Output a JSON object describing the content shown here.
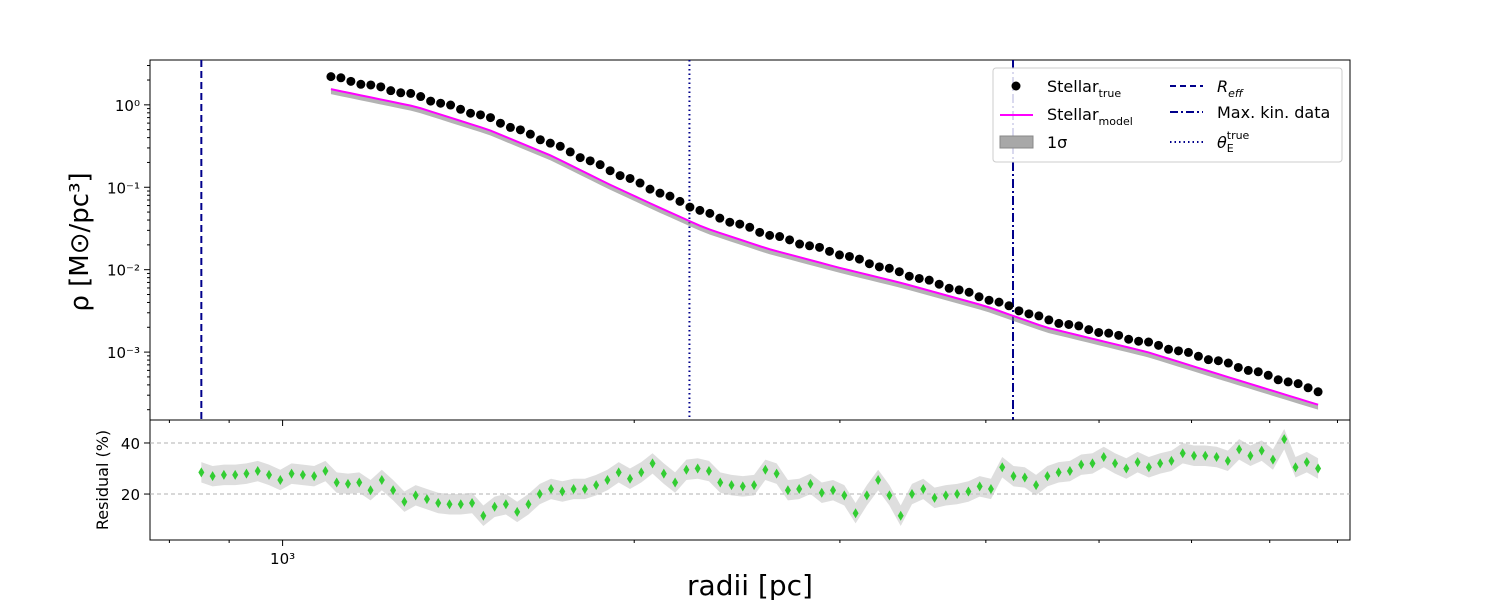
{
  "chart_data": [
    {
      "type": "scatter",
      "xlabel": "radii [pc]",
      "ylabel": "ρ [M⊙/pc³]",
      "x_scale": "log",
      "y_scale": "log",
      "xlim": [
        770,
        8200
      ],
      "ylim": [
        0.00015,
        3.5
      ],
      "x_ticks": [
        {
          "value": 1000,
          "label": "10³"
        }
      ],
      "y_ticks": [
        {
          "value": 1,
          "label": "10⁰"
        },
        {
          "value": 0.1,
          "label": "10⁻¹"
        },
        {
          "value": 0.01,
          "label": "10⁻²"
        },
        {
          "value": 0.001,
          "label": "10⁻³"
        }
      ],
      "legend_position": "top-right",
      "legend": [
        {
          "key": "stellar_true",
          "label": "Stellar",
          "sub": "true"
        },
        {
          "key": "stellar_model",
          "label": "Stellar",
          "sub": "model"
        },
        {
          "key": "band",
          "label": "1σ"
        },
        {
          "key": "reff",
          "label": "R",
          "sub": "eff"
        },
        {
          "key": "maxkin",
          "label": "Max. kin. data"
        },
        {
          "key": "theta",
          "label": "θ",
          "sub": "E",
          "sup": "true"
        }
      ],
      "vlines": [
        {
          "key": "reff",
          "x": 852,
          "style": "dashed",
          "color": "#00008b"
        },
        {
          "key": "theta",
          "x": 2230,
          "style": "dotted",
          "color": "#00008b"
        },
        {
          "key": "maxkin",
          "x": 4220,
          "style": "dashdot",
          "color": "#00008b"
        }
      ],
      "series": [
        {
          "key": "stellar_true",
          "name": "Stellar_true",
          "color": "#000000",
          "marker": "circle",
          "x_range": [
            1100,
            7700
          ],
          "n": 100,
          "profile": [
            [
              1100,
              2.2
            ],
            [
              1300,
              1.3
            ],
            [
              1500,
              0.7
            ],
            [
              1700,
              0.34
            ],
            [
              1900,
              0.165
            ],
            [
              2100,
              0.087
            ],
            [
              2300,
              0.049
            ],
            [
              2600,
              0.027
            ],
            [
              3000,
              0.0155
            ],
            [
              3400,
              0.009
            ],
            [
              4000,
              0.0045
            ],
            [
              4500,
              0.0025
            ],
            [
              5500,
              0.0013
            ],
            [
              6500,
              0.0007
            ],
            [
              7700,
              0.00034
            ]
          ]
        },
        {
          "key": "stellar_model",
          "name": "Stellar_model",
          "color": "#ff00ff",
          "style": "line",
          "profile": [
            [
              1100,
              1.55
            ],
            [
              1300,
              0.95
            ],
            [
              1500,
              0.5
            ],
            [
              1700,
              0.24
            ],
            [
              1900,
              0.11
            ],
            [
              2100,
              0.057
            ],
            [
              2300,
              0.032
            ],
            [
              2600,
              0.018
            ],
            [
              3000,
              0.0105
            ],
            [
              3400,
              0.0068
            ],
            [
              4000,
              0.0036
            ],
            [
              4500,
              0.002
            ],
            [
              5500,
              0.001
            ],
            [
              6500,
              0.00048
            ],
            [
              7700,
              0.00023
            ]
          ]
        }
      ],
      "band": {
        "color": "#808080",
        "opacity": 0.6,
        "lower_factor": 0.87,
        "upper_factor": 1.02
      }
    },
    {
      "type": "scatter",
      "ylabel": "Residual (%)",
      "x_scale": "log",
      "ylim": [
        2,
        49
      ],
      "y_ticks": [
        20,
        40
      ],
      "hlines": [
        20,
        40
      ],
      "color": "#32cd32",
      "band_color": "#c8c8c8",
      "x_range": [
        852,
        7700
      ],
      "values": [
        28.5,
        27,
        27.5,
        27.5,
        28,
        29,
        27.5,
        25.5,
        28,
        27.5,
        27,
        29,
        24.5,
        24,
        24.5,
        21.5,
        25.5,
        21.5,
        17,
        19.5,
        18,
        16.5,
        16,
        16,
        16.5,
        11.5,
        15,
        16,
        13,
        16,
        20,
        22,
        21,
        22,
        22,
        23.5,
        25.5,
        28.5,
        26,
        28.5,
        32,
        28,
        24.5,
        29.5,
        30,
        29,
        24.5,
        23.5,
        23,
        23.5,
        29.5,
        28,
        21.5,
        22,
        24,
        20.5,
        21.5,
        19.5,
        12.5,
        19.5,
        25.5,
        19.5,
        11.5,
        20,
        22,
        18.5,
        19.5,
        20,
        21,
        23,
        22,
        30.5,
        27,
        26.5,
        23.5,
        27,
        28.5,
        29,
        31.5,
        32,
        34.5,
        32,
        30,
        32.5,
        30.5,
        32,
        33,
        36,
        35,
        35,
        34.5,
        33,
        37.5,
        35,
        37,
        33.5,
        41.5,
        30.5,
        32.5,
        30
      ]
    }
  ]
}
